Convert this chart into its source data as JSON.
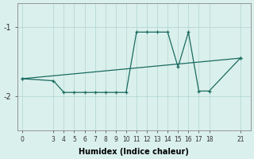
{
  "xlabel": "Humidex (Indice chaleur)",
  "bg_color": "#daf0ec",
  "grid_color": "#afd4ce",
  "line_color": "#1a6b60",
  "line1_x": [
    0,
    3,
    4,
    5,
    6,
    7,
    8,
    9,
    10,
    11,
    12,
    13,
    14,
    15,
    16,
    17,
    18,
    21
  ],
  "line1_y": [
    -1.75,
    -1.78,
    -1.95,
    -1.95,
    -1.95,
    -1.95,
    -1.95,
    -1.95,
    -1.95,
    -1.07,
    -1.07,
    -1.07,
    -1.07,
    -1.58,
    -1.07,
    -1.93,
    -1.93,
    -1.45
  ],
  "line2_x": [
    0,
    21
  ],
  "line2_y": [
    -1.75,
    -1.45
  ],
  "xlim": [
    -0.5,
    22
  ],
  "ylim": [
    -2.5,
    -0.65
  ],
  "yticks": [
    -2,
    -1
  ],
  "xticks": [
    0,
    3,
    4,
    5,
    6,
    7,
    8,
    9,
    10,
    11,
    12,
    13,
    14,
    15,
    16,
    17,
    18,
    21
  ]
}
